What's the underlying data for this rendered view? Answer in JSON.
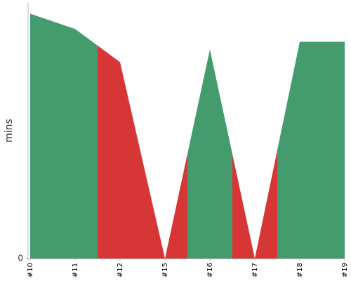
{
  "chart_data": {
    "type": "area",
    "y_label": "mins",
    "categories": [
      "#10",
      "#11",
      "#12",
      "#15",
      "#16",
      "#17",
      "#18",
      "#19"
    ],
    "values": [
      9.6,
      9.0,
      7.7,
      0,
      8.2,
      0,
      8.5,
      8.5
    ],
    "point_colors": [
      "#449b6d",
      "#449b6d",
      "#d73636",
      "#d73636",
      "#449b6d",
      "#d73636",
      "#449b6d",
      "#449b6d"
    ],
    "ylim": [
      0,
      10
    ],
    "yticks": [
      0
    ]
  }
}
